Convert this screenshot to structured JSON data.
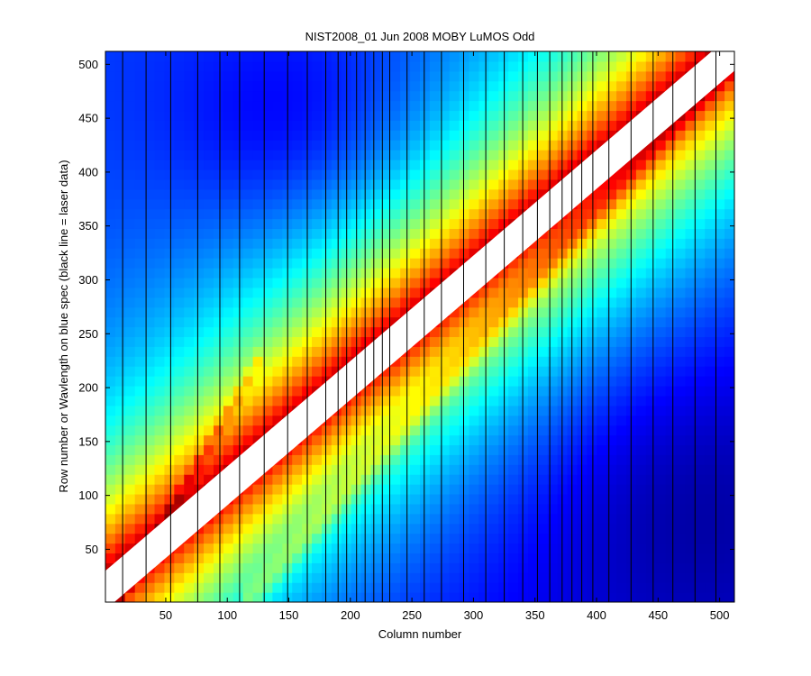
{
  "chart_data": {
    "type": "heatmap",
    "title": "NIST2008_01 Jun 2008 MOBY LuMOS Odd",
    "xlabel": "Column number",
    "ylabel": "Row number or Wavlength on blue spec (black line = laser data)",
    "xlim": [
      1,
      512
    ],
    "ylim": [
      1,
      512
    ],
    "xticks": [
      50,
      100,
      150,
      200,
      250,
      300,
      350,
      400,
      450,
      500
    ],
    "yticks": [
      50,
      100,
      150,
      200,
      250,
      300,
      350,
      400,
      450,
      500
    ],
    "colormap": "jet",
    "laser_columns": [
      15,
      34,
      54,
      76,
      94,
      110,
      130,
      149,
      165,
      180,
      190,
      197,
      205,
      212,
      219,
      226,
      232,
      246,
      260,
      274,
      292,
      310,
      325,
      340,
      352,
      362,
      372,
      380,
      388,
      397,
      410,
      428,
      446,
      462,
      480,
      497
    ],
    "white_band": {
      "description_shown": false,
      "start": [
        1,
        12
      ],
      "end": [
        512,
        512
      ],
      "width_rows": 20
    },
    "colors": {
      "dark_blue": "#0000c8",
      "blue": "#1a6ee6",
      "cyan": "#00e6e6",
      "yellow": "#f0f000",
      "red": "#ff2000",
      "dark_red": "#b40000",
      "white": "#ffffff"
    }
  }
}
